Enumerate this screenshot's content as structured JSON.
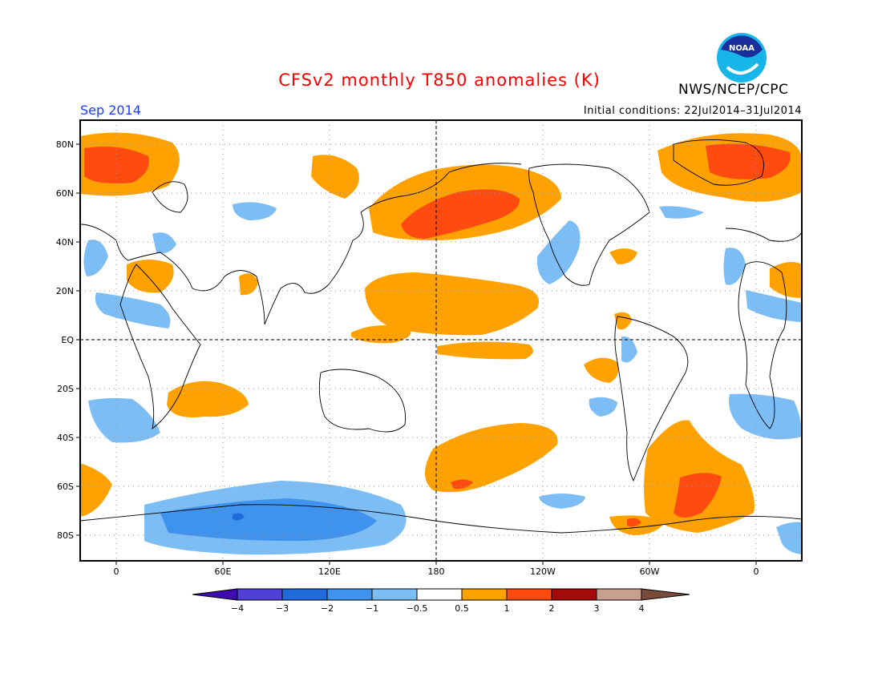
{
  "header": {
    "title": "CFSv2 monthly T850 anomalies (K)",
    "month": "Sep 2014",
    "initial_conditions": "Initial conditions: 22Jul2014–31Jul2014",
    "agency": "NWS/NCEP/CPC",
    "logo_text": "NOAA"
  },
  "axes": {
    "lat_labels": [
      "80N",
      "60N",
      "40N",
      "20N",
      "EQ",
      "20S",
      "40S",
      "60S",
      "80S"
    ],
    "lon_labels": [
      "0",
      "60E",
      "120E",
      "180",
      "120W",
      "60W",
      "0"
    ]
  },
  "colorbar": {
    "tick_labels": [
      "−4",
      "−3",
      "−2",
      "−1",
      "−0.5",
      "0.5",
      "1",
      "2",
      "3",
      "4"
    ],
    "colors": [
      "#3d0bb0",
      "#4f3fd6",
      "#1f6bdb",
      "#3f93ee",
      "#7dbdf5",
      "#ffffff",
      "#ffa200",
      "#ff4a10",
      "#a50a0a",
      "#c8a090",
      "#7a4a3a"
    ]
  },
  "palette": {
    "pos_light": "#ffa200",
    "pos_mid": "#ff4a10",
    "neg_light": "#7dbdf5",
    "neg_mid": "#3f93ee",
    "neg_dark": "#1f6bdb"
  }
}
